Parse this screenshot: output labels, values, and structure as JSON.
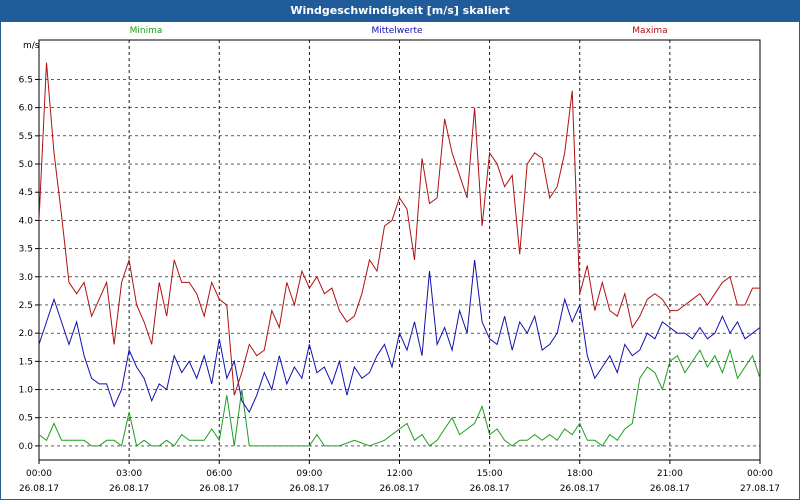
{
  "chart_data": {
    "type": "line",
    "title": "Windgeschwindigkeit [m/s] skaliert",
    "ylabel": "m/s",
    "ylim": [
      -0.25,
      7.2
    ],
    "yticks": [
      0.0,
      0.5,
      1.0,
      1.5,
      2.0,
      2.5,
      3.0,
      3.5,
      4.0,
      4.5,
      5.0,
      5.5,
      6.0,
      6.5
    ],
    "ytick_labels": [
      "0.0",
      "0.5",
      "1.0",
      "1.5",
      "2.0",
      "2.5",
      "3.0",
      "3.5",
      "4.0",
      "4.5",
      "5.0",
      "5.5",
      "6.0",
      "6.5"
    ],
    "xlim_hours": [
      0,
      24
    ],
    "xticks": [
      {
        "h": 0,
        "time": "00:00",
        "date": "26.08.17"
      },
      {
        "h": 3,
        "time": "03:00",
        "date": "26.08.17"
      },
      {
        "h": 6,
        "time": "06:00",
        "date": "26.08.17"
      },
      {
        "h": 9,
        "time": "09:00",
        "date": "26.08.17"
      },
      {
        "h": 12,
        "time": "12:00",
        "date": "26.08.17"
      },
      {
        "h": 15,
        "time": "15:00",
        "date": "26.08.17"
      },
      {
        "h": 18,
        "time": "18:00",
        "date": "26.08.17"
      },
      {
        "h": 21,
        "time": "21:00",
        "date": "26.08.17"
      },
      {
        "h": 24,
        "time": "00:00",
        "date": "27.08.17"
      }
    ],
    "grid": true,
    "series": [
      {
        "name": "Minima",
        "color": "#1e9e1e",
        "x": [
          0,
          0.25,
          0.5,
          0.75,
          1,
          1.25,
          1.5,
          1.75,
          2,
          2.25,
          2.5,
          2.75,
          3,
          3.25,
          3.5,
          3.75,
          4,
          4.25,
          4.5,
          4.75,
          5,
          5.25,
          5.5,
          5.75,
          6,
          6.25,
          6.5,
          6.75,
          7,
          7.5,
          8,
          8.5,
          9,
          9.25,
          9.5,
          10,
          10.5,
          11,
          11.5,
          12,
          12.25,
          12.5,
          12.75,
          13,
          13.25,
          13.5,
          13.75,
          14,
          14.25,
          14.5,
          14.75,
          15,
          15.25,
          15.5,
          15.75,
          16,
          16.25,
          16.5,
          16.75,
          17,
          17.25,
          17.5,
          17.75,
          18,
          18.25,
          18.5,
          18.75,
          19,
          19.25,
          19.5,
          19.75,
          20,
          20.25,
          20.5,
          20.75,
          21,
          21.25,
          21.5,
          21.75,
          22,
          22.25,
          22.5,
          22.75,
          23,
          23.25,
          23.5,
          23.75,
          24
        ],
        "y": [
          0.2,
          0.1,
          0.4,
          0.1,
          0.1,
          0.1,
          0.1,
          0.0,
          0.0,
          0.1,
          0.1,
          0.0,
          0.6,
          0.0,
          0.1,
          0.0,
          0.0,
          0.1,
          0.0,
          0.2,
          0.1,
          0.1,
          0.1,
          0.3,
          0.1,
          0.9,
          0.0,
          1.0,
          0.0,
          0.0,
          0.0,
          0.0,
          0.0,
          0.2,
          0.0,
          0.0,
          0.1,
          0.0,
          0.1,
          0.3,
          0.4,
          0.1,
          0.2,
          0.0,
          0.1,
          0.3,
          0.5,
          0.2,
          0.3,
          0.4,
          0.7,
          0.2,
          0.3,
          0.1,
          0.0,
          0.1,
          0.1,
          0.2,
          0.1,
          0.2,
          0.1,
          0.3,
          0.2,
          0.4,
          0.1,
          0.1,
          0.0,
          0.2,
          0.1,
          0.3,
          0.4,
          1.2,
          1.4,
          1.3,
          1.0,
          1.5,
          1.6,
          1.3,
          1.5,
          1.7,
          1.4,
          1.6,
          1.3,
          1.7,
          1.2,
          1.4,
          1.6,
          1.2
        ]
      },
      {
        "name": "Mittelwerte",
        "color": "#1010b0",
        "x": [
          0,
          0.25,
          0.5,
          0.75,
          1,
          1.25,
          1.5,
          1.75,
          2,
          2.25,
          2.5,
          2.75,
          3,
          3.25,
          3.5,
          3.75,
          4,
          4.25,
          4.5,
          4.75,
          5,
          5.25,
          5.5,
          5.75,
          6,
          6.25,
          6.5,
          6.75,
          7,
          7.25,
          7.5,
          7.75,
          8,
          8.25,
          8.5,
          8.75,
          9,
          9.25,
          9.5,
          9.75,
          10,
          10.25,
          10.5,
          10.75,
          11,
          11.25,
          11.5,
          11.75,
          12,
          12.25,
          12.5,
          12.75,
          13,
          13.25,
          13.5,
          13.75,
          14,
          14.25,
          14.5,
          14.75,
          15,
          15.25,
          15.5,
          15.75,
          16,
          16.25,
          16.5,
          16.75,
          17,
          17.25,
          17.5,
          17.75,
          18,
          18.25,
          18.5,
          18.75,
          19,
          19.25,
          19.5,
          19.75,
          20,
          20.25,
          20.5,
          20.75,
          21,
          21.25,
          21.5,
          21.75,
          22,
          22.25,
          22.5,
          22.75,
          23,
          23.25,
          23.5,
          23.75,
          24
        ],
        "y": [
          1.8,
          2.2,
          2.6,
          2.2,
          1.8,
          2.2,
          1.6,
          1.2,
          1.1,
          1.1,
          0.7,
          1.0,
          1.7,
          1.4,
          1.2,
          0.8,
          1.1,
          1.0,
          1.6,
          1.3,
          1.5,
          1.2,
          1.6,
          1.1,
          1.9,
          1.2,
          1.5,
          0.8,
          0.6,
          0.9,
          1.3,
          1.0,
          1.6,
          1.1,
          1.4,
          1.2,
          1.8,
          1.3,
          1.4,
          1.1,
          1.5,
          0.9,
          1.4,
          1.2,
          1.3,
          1.6,
          1.8,
          1.4,
          2.0,
          1.7,
          2.2,
          1.6,
          3.1,
          1.8,
          2.1,
          1.7,
          2.4,
          2.0,
          3.3,
          2.2,
          1.9,
          1.8,
          2.3,
          1.7,
          2.2,
          2.0,
          2.3,
          1.7,
          1.8,
          2.0,
          2.6,
          2.2,
          2.5,
          1.6,
          1.2,
          1.4,
          1.6,
          1.3,
          1.8,
          1.6,
          1.7,
          2.0,
          1.9,
          2.2,
          2.1,
          2.0,
          2.0,
          1.9,
          2.1,
          1.9,
          2.0,
          2.3,
          2.0,
          2.2,
          1.9,
          2.0,
          2.1
        ]
      },
      {
        "name": "Maxima",
        "color": "#b01010",
        "x": [
          0,
          0.25,
          0.5,
          0.75,
          1,
          1.25,
          1.5,
          1.75,
          2,
          2.25,
          2.5,
          2.75,
          3,
          3.25,
          3.5,
          3.75,
          4,
          4.25,
          4.5,
          4.75,
          5,
          5.25,
          5.5,
          5.75,
          6,
          6.25,
          6.5,
          6.75,
          7,
          7.25,
          7.5,
          7.75,
          8,
          8.25,
          8.5,
          8.75,
          9,
          9.25,
          9.5,
          9.75,
          10,
          10.25,
          10.5,
          10.75,
          11,
          11.25,
          11.5,
          11.75,
          12,
          12.25,
          12.5,
          12.75,
          13,
          13.25,
          13.5,
          13.75,
          14,
          14.25,
          14.5,
          14.75,
          15,
          15.25,
          15.5,
          15.75,
          16,
          16.25,
          16.5,
          16.75,
          17,
          17.25,
          17.5,
          17.75,
          18,
          18.25,
          18.5,
          18.75,
          19,
          19.25,
          19.5,
          19.75,
          20,
          20.25,
          20.5,
          20.75,
          21,
          21.25,
          21.5,
          21.75,
          22,
          22.25,
          22.5,
          22.75,
          23,
          23.25,
          23.5,
          23.75,
          24
        ],
        "y": [
          4.0,
          6.8,
          5.2,
          4.1,
          2.9,
          2.7,
          2.9,
          2.3,
          2.6,
          2.9,
          1.8,
          2.9,
          3.3,
          2.5,
          2.2,
          1.8,
          2.9,
          2.3,
          3.3,
          2.9,
          2.9,
          2.7,
          2.3,
          2.9,
          2.6,
          2.5,
          0.9,
          1.3,
          1.8,
          1.6,
          1.7,
          2.4,
          2.1,
          2.9,
          2.5,
          3.1,
          2.8,
          3.0,
          2.7,
          2.8,
          2.4,
          2.2,
          2.3,
          2.7,
          3.3,
          3.1,
          3.9,
          4.0,
          4.4,
          4.2,
          3.3,
          5.1,
          4.3,
          4.4,
          5.8,
          5.2,
          4.8,
          4.4,
          6.0,
          3.9,
          5.2,
          5.0,
          4.6,
          4.8,
          3.4,
          5.0,
          5.2,
          5.1,
          4.4,
          4.6,
          5.2,
          6.3,
          2.7,
          3.2,
          2.4,
          2.9,
          2.4,
          2.3,
          2.7,
          2.1,
          2.3,
          2.6,
          2.7,
          2.6,
          2.4,
          2.4,
          2.5,
          2.6,
          2.7,
          2.5,
          2.7,
          2.9,
          3.0,
          2.5,
          2.5,
          2.8,
          2.8
        ]
      }
    ]
  }
}
